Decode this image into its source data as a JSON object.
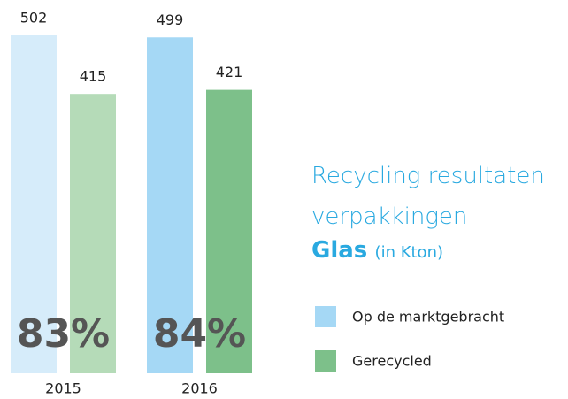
{
  "chart_data": {
    "type": "bar",
    "title": "Recycling resultaten verpakkingen",
    "subtitle": "Glas",
    "unit": "(in Kton)",
    "categories": [
      "2015",
      "2016"
    ],
    "series": [
      {
        "name": "Op de marktgebracht",
        "color": "#a5d8f5",
        "colors": [
          "#d6ecfa",
          "#a5d8f5"
        ],
        "values": [
          502,
          499
        ]
      },
      {
        "name": "Gerecycled",
        "color": "#7dc08a",
        "colors": [
          "#b5dbb8",
          "#7dc08a"
        ],
        "values": [
          415,
          421
        ]
      }
    ],
    "annotations": [
      "83%",
      "84%"
    ],
    "legend": "right"
  }
}
